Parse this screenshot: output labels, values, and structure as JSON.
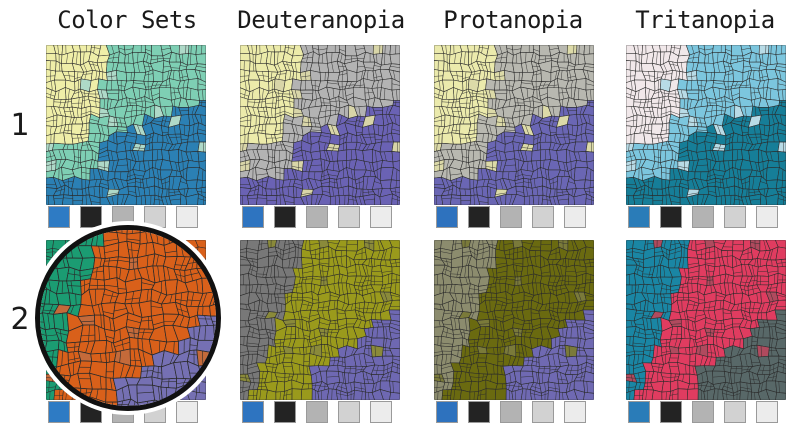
{
  "columns": [
    {
      "title": "Color Sets"
    },
    {
      "title": "Deuteranopia"
    },
    {
      "title": "Protanopia"
    },
    {
      "title": "Tritanopia"
    }
  ],
  "rows": [
    {
      "label": "1"
    },
    {
      "label": "2"
    }
  ],
  "palettes": {
    "row1": [
      {
        "a": "#efeea8",
        "b": "#7ecfb4",
        "c": "#2b80b4",
        "d": "#aed9c8"
      },
      {
        "a": "#ecebaa",
        "b": "#b3b3b3",
        "c": "#6a62b4",
        "d": "#d8d5a8"
      },
      {
        "a": "#ebeaac",
        "b": "#b8b8b0",
        "c": "#6a66b4",
        "d": "#dcdaa8"
      },
      {
        "a": "#f1e8ea",
        "b": "#7cc6de",
        "c": "#167e98",
        "d": "#b8dbe6"
      }
    ],
    "row2": [
      {
        "a": "#1b9c72",
        "b": "#d9601a",
        "c": "#7570b3",
        "d": "#c46a3a"
      },
      {
        "a": "#787878",
        "b": "#9a9a1c",
        "c": "#6e68b2",
        "d": "#8a8a3a"
      },
      {
        "a": "#8c8c6e",
        "b": "#6a6a10",
        "c": "#6f69b2",
        "d": "#7a7a3a"
      },
      {
        "a": "#1a86a4",
        "b": "#e03c60",
        "c": "#586868",
        "d": "#b04a5e"
      }
    ]
  },
  "swatches": {
    "row1": [
      [
        "#2e7bc4",
        "#232323",
        "#b3b3b3",
        "#d2d2d2",
        "#ececec"
      ],
      [
        "#2e74c0",
        "#232323",
        "#b3b3b3",
        "#d2d2d2",
        "#ececec"
      ],
      [
        "#2e72be",
        "#232323",
        "#b3b3b3",
        "#d2d2d2",
        "#ececec"
      ],
      [
        "#2a7cb8",
        "#232323",
        "#b3b3b3",
        "#d2d2d2",
        "#ececec"
      ]
    ],
    "row2": [
      [
        "#2e7bc4",
        "#232323",
        "#b3b3b3",
        "#d2d2d2",
        "#ececec"
      ],
      [
        "#2e74c0",
        "#232323",
        "#b3b3b3",
        "#d2d2d2",
        "#ececec"
      ],
      [
        "#2e72be",
        "#232323",
        "#b3b3b3",
        "#d2d2d2",
        "#ececec"
      ],
      [
        "#2a7cb8",
        "#232323",
        "#b3b3b3",
        "#d2d2d2",
        "#ececec"
      ]
    ]
  }
}
